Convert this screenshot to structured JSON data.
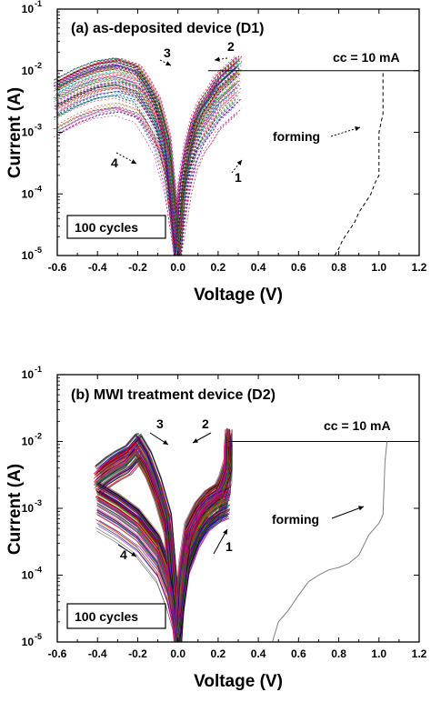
{
  "chart_data": [
    {
      "type": "line",
      "title": "(a)  as-deposited device (D1)",
      "xlabel": "Voltage (V)",
      "ylabel": "Current (A)",
      "xlim": [
        -0.6,
        1.2
      ],
      "ylim": [
        1e-05,
        0.1
      ],
      "y_scale": "log",
      "x_ticks": [
        "-0.6",
        "-0.4",
        "-0.2",
        "0.0",
        "0.2",
        "0.4",
        "0.6",
        "0.8",
        "1.0",
        "1.2"
      ],
      "y_ticks": [
        "10",
        "10",
        "10",
        "10",
        "10"
      ],
      "y_tick_exponents": [
        "-5",
        "-4",
        "-3",
        "-2",
        "-1"
      ],
      "y_tick_values": [
        1e-05,
        0.0001,
        0.001,
        0.01,
        0.1
      ],
      "compliance": {
        "label": "cc = 10 mA",
        "value": 0.01,
        "x_start": 0.15,
        "x_end": 1.2
      },
      "cycles_label": "100 cycles",
      "forming_label": "forming",
      "arrow_labels": [
        "1",
        "2",
        "3",
        "4"
      ],
      "forming_curve": {
        "x": [
          0.78,
          0.8,
          0.82,
          0.85,
          0.88,
          0.9,
          0.93,
          0.96,
          0.98,
          1.0,
          1.0,
          1.02,
          1.02
        ],
        "y": [
          1e-05,
          1.3e-05,
          1.8e-05,
          2.5e-05,
          3.5e-05,
          5e-05,
          7e-05,
          0.0001,
          0.00015,
          0.0002,
          0.001,
          0.002,
          0.01
        ]
      },
      "set_curve": {
        "x": [
          0.0,
          0.02,
          0.05,
          0.08,
          0.12,
          0.16,
          0.2,
          0.25,
          0.3
        ],
        "y": [
          1e-05,
          0.0001,
          0.0004,
          0.001,
          0.002,
          0.003,
          0.005,
          0.007,
          0.01
        ]
      },
      "reset_curve": {
        "x": [
          -0.6,
          -0.5,
          -0.4,
          -0.3,
          -0.2,
          -0.15,
          -0.1,
          -0.05,
          0.0
        ],
        "y": [
          0.004,
          0.006,
          0.008,
          0.009,
          0.007,
          0.004,
          0.002,
          0.0005,
          1e-05
        ]
      },
      "cycle_count": 100
    },
    {
      "type": "line",
      "title": "(b)  MWI treatment device (D2)",
      "xlabel": "Voltage (V)",
      "ylabel": "Current (A)",
      "xlim": [
        -0.6,
        1.2
      ],
      "ylim": [
        1e-05,
        0.1
      ],
      "y_scale": "log",
      "x_ticks": [
        "-0.6",
        "-0.4",
        "-0.2",
        "0.0",
        "0.2",
        "0.4",
        "0.6",
        "0.8",
        "1.0",
        "1.2"
      ],
      "y_ticks": [
        "10",
        "10",
        "10",
        "10",
        "10"
      ],
      "y_tick_exponents": [
        "-5",
        "-4",
        "-3",
        "-2",
        "-1"
      ],
      "y_tick_values": [
        1e-05,
        0.0001,
        0.001,
        0.01,
        0.1
      ],
      "compliance": {
        "label": "cc = 10 mA",
        "value": 0.01,
        "x_start": 0.25,
        "x_end": 1.2
      },
      "cycles_label": "100 cycles",
      "forming_label": "forming",
      "arrow_labels": [
        "1",
        "2",
        "3",
        "4"
      ],
      "forming_curve": {
        "x": [
          0.47,
          0.5,
          0.55,
          0.6,
          0.65,
          0.7,
          0.75,
          0.8,
          0.85,
          0.9,
          0.95,
          1.0,
          1.02,
          1.03,
          1.04
        ],
        "y": [
          1e-05,
          2e-05,
          3e-05,
          5e-05,
          8e-05,
          0.0001,
          0.00012,
          0.00013,
          0.00015,
          0.0002,
          0.0004,
          0.0006,
          0.0008,
          0.005,
          0.01
        ]
      },
      "set_curve": {
        "x": [
          0.0,
          0.02,
          0.05,
          0.1,
          0.15,
          0.2,
          0.22,
          0.25,
          0.25
        ],
        "y": [
          1e-05,
          0.0001,
          0.0004,
          0.0008,
          0.0012,
          0.0015,
          0.002,
          0.004,
          0.01
        ]
      },
      "reset_curve": {
        "x": [
          -0.4,
          -0.35,
          -0.3,
          -0.25,
          -0.2,
          -0.15,
          -0.1,
          -0.05,
          0.0
        ],
        "y": [
          0.003,
          0.004,
          0.005,
          0.006,
          0.009,
          0.005,
          0.002,
          0.0006,
          1e-05
        ]
      },
      "hrs_curve": {
        "x": [
          -0.4,
          -0.3,
          -0.2,
          -0.1,
          -0.05,
          0.0
        ],
        "y": [
          0.0015,
          0.001,
          0.0006,
          0.00025,
          0.0001,
          1e-05
        ]
      },
      "lrs_curve": {
        "x": [
          0.0,
          0.05,
          0.1,
          0.15,
          0.2,
          0.25
        ],
        "y": [
          1e-05,
          0.0002,
          0.0005,
          0.0009,
          0.0012,
          0.0014
        ]
      },
      "cycle_count": 100
    }
  ],
  "colors": {
    "panel_a_series": [
      "#e6007e",
      "#0000cc",
      "#009900",
      "#990099",
      "#cc6600",
      "#00aaaa",
      "#000000",
      "#cc0000"
    ],
    "panel_b_series": [
      "#e6007e",
      "#0000cc",
      "#009900",
      "#990099",
      "#cc6600",
      "#555555",
      "#000000",
      "#cc0000"
    ],
    "forming_a": "#000000",
    "forming_b": "#808080"
  }
}
